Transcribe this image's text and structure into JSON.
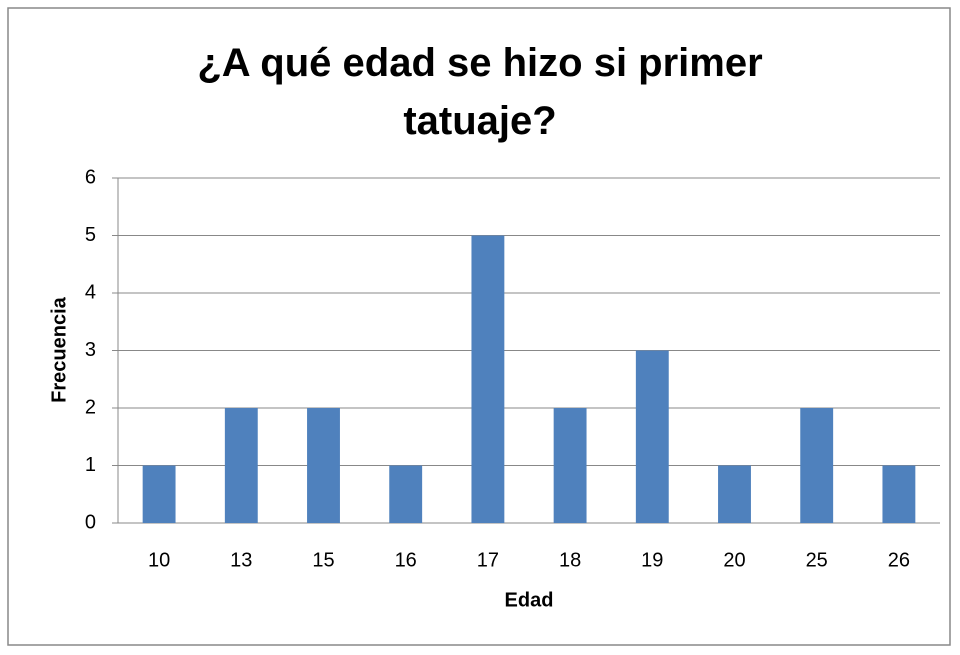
{
  "chart_data": {
    "type": "bar",
    "title": "¿A qué edad se hizo si primer tatuaje?",
    "x_label": "Edad",
    "y_label": "Frecuencia",
    "categories": [
      "10",
      "13",
      "15",
      "16",
      "17",
      "18",
      "19",
      "20",
      "25",
      "26"
    ],
    "values": [
      1,
      2,
      2,
      1,
      5,
      2,
      3,
      1,
      2,
      1
    ],
    "color": "#4f81bd",
    "ylim": [
      0,
      6
    ],
    "yticks": [
      0,
      1,
      2,
      3,
      4,
      5,
      6
    ],
    "grid": true
  }
}
